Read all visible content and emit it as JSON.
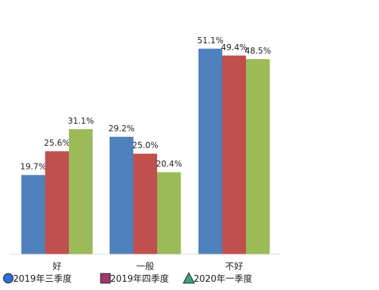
{
  "chart_data": {
    "type": "bar",
    "title": "",
    "xlabel": "",
    "ylabel": "",
    "categories": [
      "好",
      "一般",
      "不好"
    ],
    "series": [
      {
        "name": "2019年三季度",
        "values": [
          19.7,
          29.2,
          51.1
        ],
        "color": "#4f81bd",
        "marker": "circle",
        "marker_color": "#2e6fd1"
      },
      {
        "name": "2019年四季度",
        "values": [
          25.6,
          25.0,
          49.4
        ],
        "color": "#c0504d",
        "marker": "square",
        "marker_color": "#9e3a6a"
      },
      {
        "name": "2020年一季度",
        "values": [
          31.1,
          20.4,
          48.5
        ],
        "color": "#9bbb59",
        "marker": "triangle",
        "marker_color": "#3aa57a"
      }
    ],
    "value_suffix": "%",
    "ylim": [
      0,
      60
    ],
    "grid": false,
    "legend": "bottom"
  }
}
